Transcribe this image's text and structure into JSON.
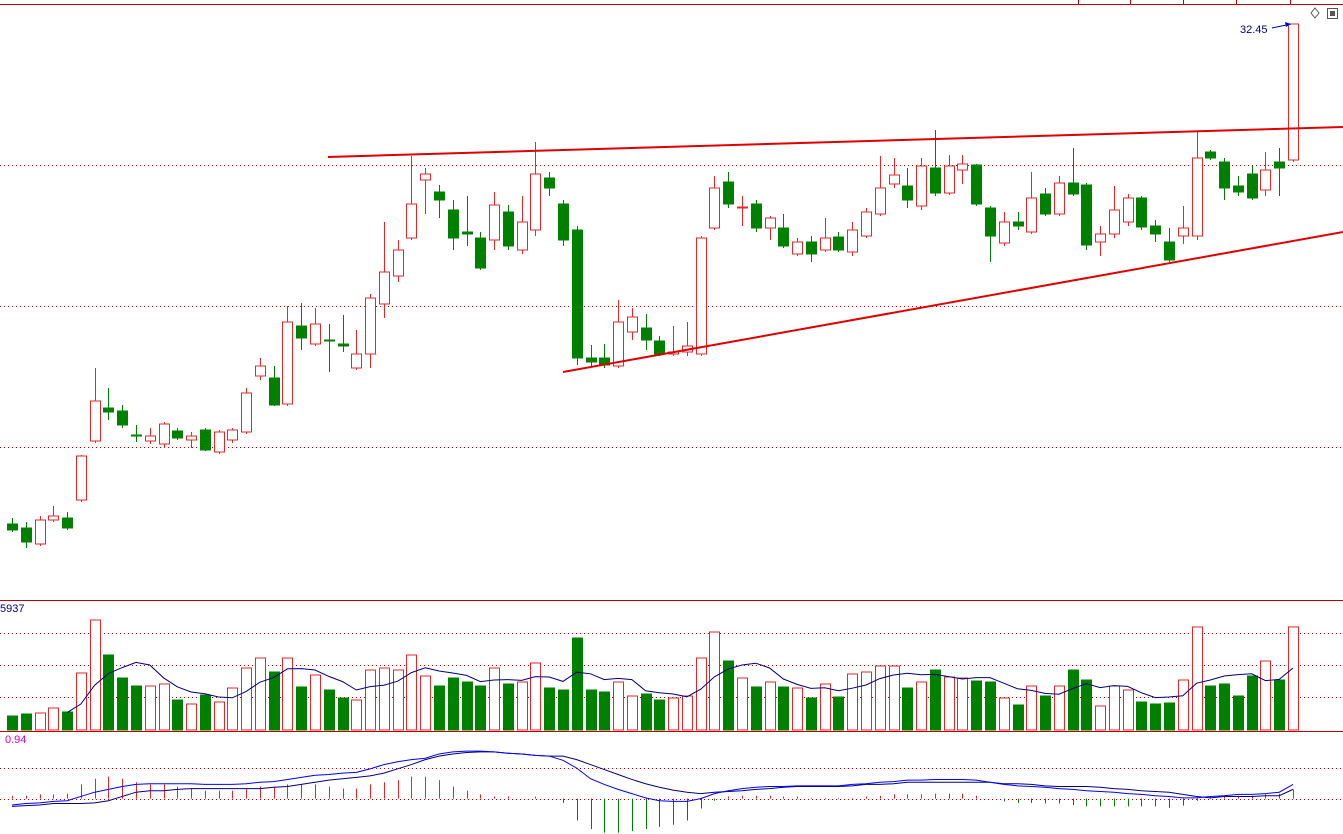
{
  "chart_data": {
    "type": "candlestick",
    "open": [
      22.45,
      22.37,
      22.05,
      22.53,
      22.57,
      22.93,
      24.11,
      24.77,
      24.71,
      24.23,
      24.11,
      24.05,
      24.31,
      24.13,
      24.33,
      23.89,
      24.13,
      24.29,
      25.41,
      25.37,
      24.85,
      26.41,
      26.05,
      26.13,
      26.05,
      25.57,
      25.85,
      26.85,
      27.41,
      28.17,
      29.33,
      29.09,
      28.73,
      28.29,
      28.17,
      28.13,
      28.69,
      27.93,
      28.33,
      29.37,
      28.85,
      28.33,
      25.77,
      25.77,
      25.61,
      26.29,
      26.37,
      26.11,
      25.85,
      25.89,
      25.85,
      28.37,
      29.29,
      28.77,
      28.85,
      28.37,
      28.37,
      27.85,
      28.09,
      27.93,
      28.19,
      27.89,
      28.21,
      28.65,
      29.25,
      29.21,
      28.81,
      29.57,
      29.07,
      29.53,
      29.63,
      28.77,
      28.07,
      28.49,
      28.29,
      29.05,
      28.65,
      29.27,
      29.23,
      28.09,
      28.25,
      28.49,
      28.97,
      28.41,
      28.09,
      28.21,
      28.21,
      29.89,
      29.69,
      29.21,
      29.45,
      29.13,
      29.69,
      29.73
    ],
    "high": [
      22.57,
      22.49,
      22.61,
      22.81,
      22.69,
      23.83,
      25.57,
      25.17,
      24.83,
      24.43,
      24.37,
      24.49,
      24.37,
      24.29,
      24.37,
      24.33,
      24.37,
      25.17,
      25.77,
      25.61,
      26.81,
      26.87,
      26.77,
      26.45,
      26.63,
      26.33,
      27.05,
      28.49,
      28.13,
      29.81,
      29.57,
      29.23,
      28.93,
      29.01,
      28.29,
      29.09,
      28.83,
      29.01,
      30.09,
      29.49,
      28.93,
      28.41,
      26.03,
      26.05,
      26.93,
      26.77,
      26.65,
      26.21,
      26.41,
      26.49,
      28.21,
      29.41,
      29.49,
      29.01,
      28.93,
      28.61,
      28.65,
      28.17,
      28.21,
      28.57,
      28.29,
      28.49,
      28.77,
      29.81,
      29.77,
      29.57,
      29.77,
      30.33,
      29.83,
      29.83,
      29.65,
      28.81,
      28.69,
      28.69,
      29.49,
      29.17,
      29.41,
      29.97,
      29.27,
      28.41,
      29.21,
      29.05,
      29.01,
      28.53,
      28.37,
      28.81,
      30.29,
      29.93,
      29.77,
      29.41,
      29.61,
      29.89,
      29.97,
      32.45
    ],
    "low": [
      22.29,
      21.97,
      22.01,
      22.49,
      22.33,
      22.89,
      24.07,
      24.53,
      24.37,
      24.09,
      24.05,
      23.97,
      24.13,
      23.97,
      23.91,
      23.85,
      24.07,
      24.25,
      25.33,
      24.81,
      24.81,
      25.93,
      26.01,
      25.49,
      25.89,
      25.53,
      25.57,
      26.57,
      27.29,
      28.13,
      28.65,
      28.57,
      27.93,
      28.01,
      27.53,
      27.93,
      27.93,
      27.85,
      28.21,
      29.01,
      28.01,
      25.63,
      25.61,
      25.57,
      25.57,
      26.13,
      25.93,
      25.81,
      25.81,
      25.81,
      25.81,
      28.33,
      28.77,
      28.41,
      28.29,
      28.13,
      27.97,
      27.81,
      27.69,
      27.89,
      27.89,
      27.81,
      28.17,
      28.61,
      29.17,
      28.77,
      28.73,
      29.01,
      29.03,
      29.25,
      28.81,
      27.69,
      28.01,
      28.33,
      28.25,
      28.61,
      28.61,
      29.01,
      27.93,
      27.81,
      28.17,
      28.41,
      28.33,
      28.09,
      27.69,
      28.05,
      28.13,
      29.73,
      28.93,
      29.01,
      28.93,
      29.01,
      29.01,
      29.69
    ],
    "close": [
      22.33,
      22.09,
      22.53,
      22.61,
      22.37,
      23.81,
      24.91,
      24.69,
      24.43,
      24.21,
      24.21,
      24.45,
      24.17,
      24.21,
      23.93,
      24.29,
      24.33,
      25.07,
      25.61,
      24.83,
      26.49,
      26.17,
      26.45,
      26.11,
      26.01,
      25.85,
      26.97,
      27.49,
      27.93,
      28.85,
      29.45,
      28.93,
      28.17,
      28.25,
      27.57,
      28.83,
      28.01,
      28.49,
      29.45,
      29.17,
      28.13,
      25.77,
      25.69,
      25.63,
      26.49,
      26.59,
      26.13,
      25.85,
      25.89,
      26.01,
      28.17,
      29.17,
      28.85,
      28.79,
      28.37,
      28.57,
      28.01,
      28.09,
      27.85,
      28.17,
      27.93,
      28.33,
      28.69,
      29.17,
      29.43,
      28.93,
      29.61,
      29.07,
      29.61,
      29.65,
      28.85,
      28.21,
      28.49,
      28.41,
      28.97,
      28.65,
      29.27,
      29.05,
      28.03,
      28.25,
      28.73,
      28.97,
      28.39,
      28.25,
      27.73,
      28.37,
      29.77,
      29.77,
      29.17,
      29.09,
      28.97,
      29.53,
      29.57,
      32.45
    ],
    "ylim": [
      20.93,
      32.83
    ],
    "ygrid": [
      29.63,
      26.81,
      23.99
    ],
    "volume": [
      806,
      922,
      979,
      1267,
      1037,
      3283,
      6336,
      4320,
      2995,
      2534,
      2534,
      2650,
      1728,
      1498,
      2016,
      1613,
      2419,
      3571,
      4147,
      3341,
      4147,
      2477,
      3168,
      2304,
      1843,
      1728,
      3456,
      3571,
      3456,
      4320,
      3110,
      2534,
      2995,
      2765,
      2534,
      3571,
      2650,
      2765,
      3859,
      2419,
      2304,
      5299,
      2304,
      2189,
      2765,
      1958,
      2074,
      1728,
      1843,
      1958,
      4147,
      5645,
      3974,
      2995,
      2477,
      2765,
      2477,
      2419,
      1843,
      2650,
      1901,
      3226,
      3341,
      3686,
      3686,
      2419,
      2765,
      3456,
      3053,
      2995,
      2822,
      2765,
      1843,
      1440,
      2534,
      1958,
      2534,
      3456,
      2880,
      1382,
      2534,
      2304,
      1613,
      1498,
      1555,
      2880,
      5933,
      2534,
      2650,
      1958,
      3110,
      3974,
      2880,
      5937
    ],
    "volume_ylim": [
      0,
      7488
    ],
    "volume_grid": [
      1900,
      3744,
      5587
    ],
    "macd_hist": [
      0.04,
      0.04,
      0.06,
      0.06,
      0.07,
      0.2,
      0.28,
      0.31,
      0.28,
      0.23,
      0.2,
      0.2,
      0.17,
      0.14,
      0.11,
      0.11,
      0.11,
      0.14,
      0.17,
      0.17,
      0.2,
      0.2,
      0.2,
      0.17,
      0.14,
      0.14,
      0.2,
      0.23,
      0.26,
      0.31,
      0.31,
      0.26,
      0.17,
      0.11,
      0.06,
      0.03,
      0.03,
      0,
      0.03,
      0,
      -0.06,
      -0.31,
      -0.43,
      -0.48,
      -0.48,
      -0.46,
      -0.43,
      -0.4,
      -0.37,
      -0.31,
      -0.14,
      -0.03,
      0.03,
      0.04,
      0.04,
      0.04,
      0.03,
      0.03,
      0.01,
      0.01,
      0.01,
      0.01,
      0.03,
      0.04,
      0.06,
      0.06,
      0.06,
      0.07,
      0.07,
      0.07,
      0.04,
      0,
      -0.04,
      -0.06,
      -0.06,
      -0.07,
      -0.07,
      -0.09,
      -0.11,
      -0.11,
      -0.11,
      -0.11,
      -0.11,
      -0.11,
      -0.13,
      -0.1,
      -0.03,
      0.03,
      0.03,
      0.04,
      0.04,
      0.06,
      0.07,
      0.13
    ],
    "dif": [
      -0.09,
      -0.07,
      -0.06,
      -0.04,
      -0.03,
      0.03,
      0.09,
      0.13,
      0.17,
      0.2,
      0.21,
      0.21,
      0.21,
      0.21,
      0.2,
      0.2,
      0.2,
      0.21,
      0.23,
      0.24,
      0.27,
      0.3,
      0.33,
      0.34,
      0.36,
      0.37,
      0.42,
      0.48,
      0.52,
      0.55,
      0.57,
      0.63,
      0.66,
      0.67,
      0.67,
      0.66,
      0.64,
      0.63,
      0.61,
      0.6,
      0.54,
      0.43,
      0.28,
      0.2,
      0.13,
      0.07,
      0.01,
      -0.03,
      -0.04,
      -0.04,
      0,
      0.07,
      0.11,
      0.14,
      0.16,
      0.17,
      0.17,
      0.18,
      0.18,
      0.18,
      0.18,
      0.2,
      0.21,
      0.23,
      0.24,
      0.26,
      0.26,
      0.27,
      0.27,
      0.27,
      0.26,
      0.23,
      0.2,
      0.18,
      0.17,
      0.16,
      0.14,
      0.13,
      0.11,
      0.1,
      0.09,
      0.07,
      0.06,
      0.04,
      0.03,
      0.01,
      0.01,
      0.03,
      0.04,
      0.06,
      0.06,
      0.07,
      0.09,
      0.2
    ],
    "dea": [
      -0.11,
      -0.1,
      -0.09,
      -0.07,
      -0.07,
      -0.07,
      -0.06,
      -0.03,
      0.03,
      0.09,
      0.11,
      0.11,
      0.13,
      0.14,
      0.14,
      0.14,
      0.14,
      0.14,
      0.14,
      0.16,
      0.17,
      0.2,
      0.23,
      0.26,
      0.28,
      0.3,
      0.32,
      0.36,
      0.42,
      0.48,
      0.55,
      0.6,
      0.63,
      0.65,
      0.66,
      0.66,
      0.64,
      0.63,
      0.61,
      0.6,
      0.6,
      0.55,
      0.48,
      0.41,
      0.34,
      0.27,
      0.21,
      0.16,
      0.12,
      0.09,
      0.07,
      0.09,
      0.1,
      0.11,
      0.13,
      0.14,
      0.16,
      0.17,
      0.17,
      0.17,
      0.17,
      0.18,
      0.2,
      0.2,
      0.21,
      0.23,
      0.23,
      0.23,
      0.23,
      0.23,
      0.23,
      0.23,
      0.21,
      0.21,
      0.2,
      0.18,
      0.17,
      0.17,
      0.17,
      0.16,
      0.14,
      0.13,
      0.11,
      0.1,
      0.09,
      0.06,
      0.03,
      0.01,
      0.03,
      0.03,
      0.03,
      0.04,
      0.04,
      0.13
    ],
    "macd_ylim": [
      -0.5,
      0.94
    ],
    "macd_grid": [
      0,
      0.43
    ],
    "up_color": "#e8262a",
    "down_color": "#008000",
    "volume_ma_color": "#000080",
    "dif_color": "#0000ff",
    "dea_color": "#000080",
    "grid_color": "#c00000"
  }
}
